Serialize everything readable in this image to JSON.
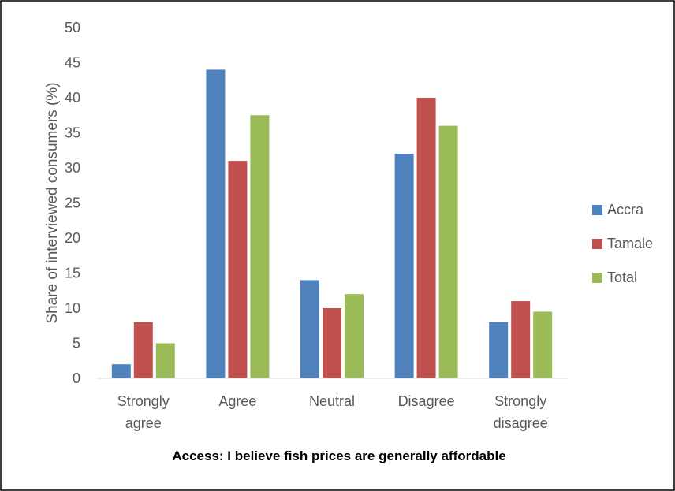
{
  "chart_data": {
    "type": "bar",
    "title": "",
    "xlabel": "Access: I believe fish prices are generally affordable",
    "ylabel": "Share of interviewed consumers (%)",
    "categories": [
      [
        "Strongly",
        "agree"
      ],
      [
        "Agree"
      ],
      [
        "Neutral"
      ],
      [
        "Disagree"
      ],
      [
        "Strongly",
        "disagree"
      ]
    ],
    "series": [
      {
        "name": "Accra",
        "color": "#4f81bd",
        "values": [
          2,
          44,
          14,
          32,
          8
        ]
      },
      {
        "name": "Tamale",
        "color": "#c0504d",
        "values": [
          8,
          31,
          10,
          40,
          11
        ]
      },
      {
        "name": "Total",
        "color": "#9bbb59",
        "values": [
          5,
          37.5,
          12,
          36,
          9.5
        ]
      }
    ],
    "ylim": [
      0,
      50
    ],
    "yticks": [
      0,
      5,
      10,
      15,
      20,
      25,
      30,
      35,
      40,
      45,
      50
    ],
    "grid": false,
    "legend_position": "right"
  }
}
